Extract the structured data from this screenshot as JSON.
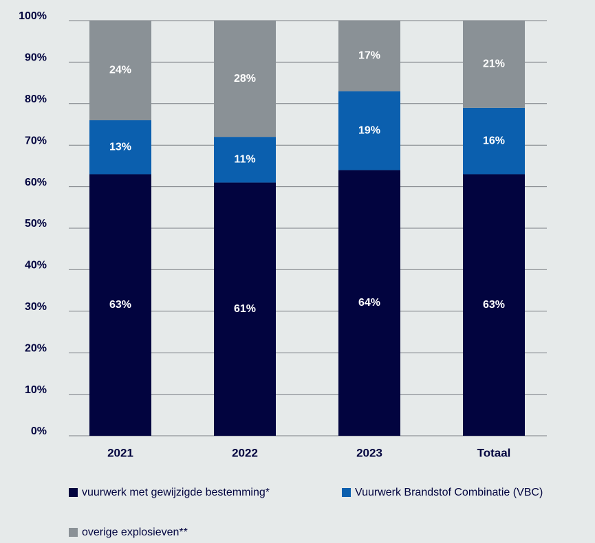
{
  "chart_data": {
    "type": "stacked_bar",
    "categories": [
      "2021",
      "2022",
      "2023",
      "Totaal"
    ],
    "series": [
      {
        "name": "vuurwerk met gewijzigde bestemming*",
        "color": "#02043f",
        "values": [
          63,
          61,
          64,
          63
        ],
        "value_labels": [
          "63%",
          "61%",
          "64%",
          "63%"
        ]
      },
      {
        "name": "Vuurwerk Brandstof Combinatie (VBC)",
        "color": "#0b5fae",
        "values": [
          13,
          11,
          19,
          16
        ],
        "value_labels": [
          "13%",
          "11%",
          "19%",
          "16%"
        ]
      },
      {
        "name": "overige explosieven**",
        "color": "#8a9196",
        "values": [
          24,
          28,
          17,
          21
        ],
        "value_labels": [
          "24%",
          "28%",
          "17%",
          "21%"
        ]
      }
    ],
    "ylim": [
      0,
      100
    ],
    "yticks": [
      {
        "value": 0,
        "label": "0%"
      },
      {
        "value": 10,
        "label": "10%"
      },
      {
        "value": 20,
        "label": "20%"
      },
      {
        "value": 30,
        "label": "30%"
      },
      {
        "value": 40,
        "label": "40%"
      },
      {
        "value": 50,
        "label": "50%"
      },
      {
        "value": 60,
        "label": "60%"
      },
      {
        "value": 70,
        "label": "70%"
      },
      {
        "value": 80,
        "label": "80%"
      },
      {
        "value": 90,
        "label": "90%"
      },
      {
        "value": 100,
        "label": "100%"
      }
    ],
    "grid": true
  }
}
